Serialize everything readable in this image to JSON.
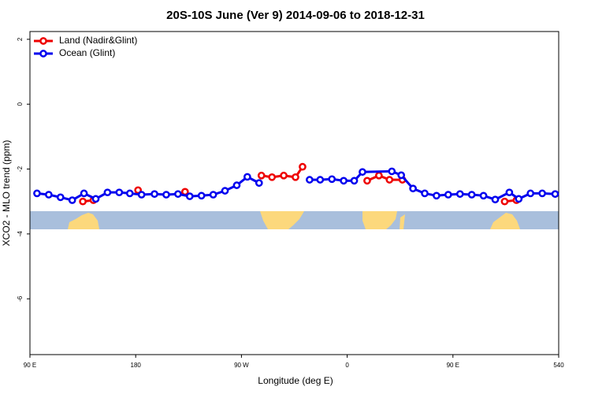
{
  "chart_data": {
    "type": "line",
    "title": "20S-10S June (Ver 9)   2014-09-06 to 2018-12-31",
    "x_label": "Longitude (deg E)",
    "y_label": "XCO2 - MLO trend (ppm)",
    "xlim": [
      90,
      540
    ],
    "ylim": [
      -7.72,
      2.24
    ],
    "xticks": [
      {
        "value": 90,
        "label": "90 E"
      },
      180,
      {
        "value": 270,
        "label": "90 W"
      },
      {
        "value": 360,
        "label": "0"
      },
      {
        "value": 450,
        "label": "90 E"
      },
      540
    ],
    "yticks": [
      -6,
      -4,
      -2,
      0,
      2
    ],
    "legend": "top-left",
    "series": [
      {
        "name": "Land (Nadir&Glint)",
        "color": "#ee0000",
        "x": [
          135,
          144,
          null,
          182,
          null,
          222,
          null,
          287,
          296,
          306,
          316,
          322,
          null,
          377,
          387,
          396,
          407,
          null,
          494,
          504
        ],
        "values": [
          -3.0,
          -2.96,
          null,
          -2.65,
          null,
          -2.7,
          null,
          -2.2,
          -2.25,
          -2.2,
          -2.25,
          -1.93,
          null,
          -2.36,
          -2.2,
          -2.33,
          -2.33,
          null,
          -3.0,
          -2.96
        ]
      },
      {
        "name": "Ocean (Glint)",
        "color": "#0000ee",
        "x": [
          96,
          106,
          116,
          126,
          136,
          146,
          156,
          166,
          175,
          185,
          196,
          206,
          216,
          226,
          236,
          246,
          256,
          266,
          275,
          285,
          null,
          328,
          337,
          347,
          357,
          366,
          373,
          398,
          406,
          416,
          426,
          436,
          446,
          456,
          466,
          476,
          486,
          498,
          506,
          516,
          526,
          537
        ],
        "values": [
          -2.75,
          -2.79,
          -2.87,
          -2.96,
          -2.75,
          -2.92,
          -2.72,
          -2.72,
          -2.75,
          -2.79,
          -2.77,
          -2.79,
          -2.77,
          -2.84,
          -2.82,
          -2.79,
          -2.67,
          -2.5,
          -2.24,
          -2.43,
          null,
          -2.33,
          -2.33,
          -2.31,
          -2.36,
          -2.36,
          -2.09,
          -2.07,
          -2.19,
          -2.6,
          -2.75,
          -2.82,
          -2.79,
          -2.77,
          -2.79,
          -2.82,
          -2.94,
          -2.72,
          -2.92,
          -2.75,
          -2.75,
          -2.77
        ]
      }
    ]
  }
}
